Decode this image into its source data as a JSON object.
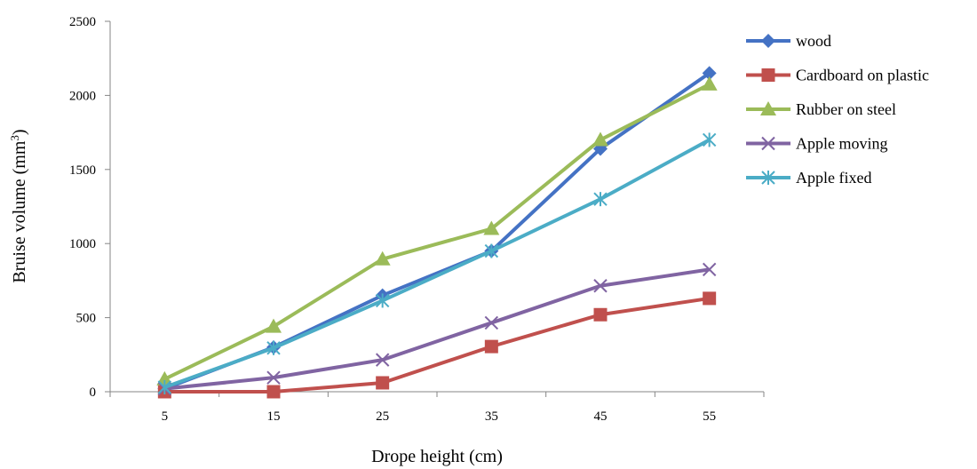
{
  "chart_data": {
    "type": "line",
    "title": "",
    "xlabel": "Drope height (cm)",
    "ylabel_main": "Bruise volume (mm",
    "ylabel_sup": "3",
    "ylabel_close": ")",
    "categories": [
      "5",
      "15",
      "25",
      "35",
      "45",
      "55"
    ],
    "ylim": [
      0,
      2500
    ],
    "yticks": [
      "0",
      "500",
      "1000",
      "1500",
      "2000",
      "2500"
    ],
    "legend_position": "right",
    "grid": false,
    "series": [
      {
        "name": "wood",
        "color": "#4472C4",
        "marker": "diamond",
        "values": [
          20,
          300,
          650,
          950,
          1640,
          2150
        ]
      },
      {
        "name": "Cardboard on plastic",
        "color": "#C0504D",
        "marker": "square",
        "values": [
          0,
          0,
          60,
          305,
          520,
          630
        ]
      },
      {
        "name": "Rubber on steel",
        "color": "#9BBB59",
        "marker": "triangle",
        "values": [
          85,
          440,
          895,
          1100,
          1700,
          2075
        ]
      },
      {
        "name": "Apple moving",
        "color": "#8064A2",
        "marker": "x",
        "values": [
          20,
          95,
          215,
          465,
          715,
          825
        ]
      },
      {
        "name": "Apple fixed",
        "color": "#4BACC6",
        "marker": "star",
        "values": [
          30,
          295,
          615,
          950,
          1300,
          1700
        ]
      }
    ]
  }
}
